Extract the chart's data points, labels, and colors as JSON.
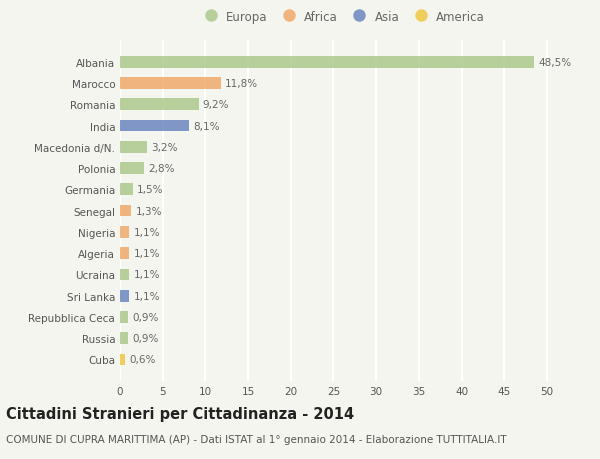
{
  "countries": [
    "Albania",
    "Marocco",
    "Romania",
    "India",
    "Macedonia d/N.",
    "Polonia",
    "Germania",
    "Senegal",
    "Nigeria",
    "Algeria",
    "Ucraina",
    "Sri Lanka",
    "Repubblica Ceca",
    "Russia",
    "Cuba"
  ],
  "values": [
    48.5,
    11.8,
    9.2,
    8.1,
    3.2,
    2.8,
    1.5,
    1.3,
    1.1,
    1.1,
    1.1,
    1.1,
    0.9,
    0.9,
    0.6
  ],
  "labels": [
    "48,5%",
    "11,8%",
    "9,2%",
    "8,1%",
    "3,2%",
    "2,8%",
    "1,5%",
    "1,3%",
    "1,1%",
    "1,1%",
    "1,1%",
    "1,1%",
    "0,9%",
    "0,9%",
    "0,6%"
  ],
  "continents": [
    "Europa",
    "Africa",
    "Europa",
    "Asia",
    "Europa",
    "Europa",
    "Europa",
    "Africa",
    "Africa",
    "Africa",
    "Europa",
    "Asia",
    "Europa",
    "Europa",
    "America"
  ],
  "continent_colors": {
    "Europa": "#adc98b",
    "Africa": "#f0a96a",
    "Asia": "#6b86c0",
    "America": "#f0c845"
  },
  "legend_order": [
    "Europa",
    "Africa",
    "Asia",
    "America"
  ],
  "title": "Cittadini Stranieri per Cittadinanza - 2014",
  "subtitle": "COMUNE DI CUPRA MARITTIMA (AP) - Dati ISTAT al 1° gennaio 2014 - Elaborazione TUTTITALIA.IT",
  "xlim": [
    0,
    52
  ],
  "xticks": [
    0,
    5,
    10,
    15,
    20,
    25,
    30,
    35,
    40,
    45,
    50
  ],
  "background_color": "#f5f5f0",
  "grid_color": "#ffffff",
  "bar_height": 0.55,
  "title_fontsize": 10.5,
  "subtitle_fontsize": 7.5,
  "label_fontsize": 7.5,
  "tick_fontsize": 7.5,
  "legend_fontsize": 8.5
}
